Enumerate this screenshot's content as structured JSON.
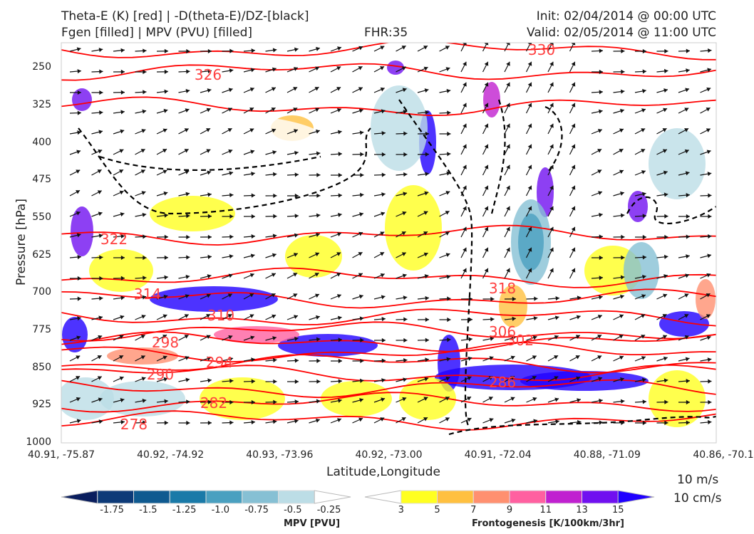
{
  "header": {
    "title_left_1": "Theta-E (K) [red] | -D(theta-E)/DZ-[black]",
    "title_left_2": "Fgen [filled] | MPV (PVU) [filled]",
    "fhr": "FHR:35",
    "init": "Init: 02/04/2014 @ 00:00 UTC",
    "valid": "Valid: 02/05/2014 @ 11:00 UTC"
  },
  "chart_data": {
    "type": "cross-section",
    "xlabel": "Latitude,Longitude",
    "ylabel": "Pressure [hPa]",
    "ylim": [
      1000,
      200
    ],
    "y_ticks": [
      "250",
      "325",
      "400",
      "475",
      "550",
      "625",
      "700",
      "775",
      "850",
      "925",
      "1000"
    ],
    "x_ticks": [
      "40.91, -75.87",
      "40.92, -74.92",
      "40.93, -73.96",
      "40.92, -73.00",
      "40.91, -72.04",
      "40.88, -71.09",
      "40.86, -70.1"
    ],
    "theta_e_labels": [
      "330",
      "326",
      "322",
      "318",
      "314",
      "310",
      "306",
      "302",
      "298",
      "294",
      "290",
      "286",
      "282",
      "278"
    ],
    "mpv_colorbar": {
      "label": "MPV [PVU]",
      "ticks": [
        "-1.75",
        "-1.5",
        "-1.25",
        "-1.0",
        "-0.75",
        "-0.5",
        "-0.25"
      ],
      "colors": [
        "#0a1e5e",
        "#0d3a78",
        "#0f5a90",
        "#1a7aa8",
        "#4aa0c0",
        "#86c0d4",
        "#bcdde6",
        "#ffffff"
      ]
    },
    "fgen_colorbar": {
      "label": "Frontogenesis [K/100km/3hr]",
      "ticks": [
        "3",
        "5",
        "7",
        "9",
        "11",
        "13",
        "15"
      ],
      "colors": [
        "#ffffff",
        "#ffff20",
        "#ffc040",
        "#ff9070",
        "#ff60a0",
        "#c020d0",
        "#7010f0",
        "#2000ff"
      ]
    },
    "wind_key": {
      "horizontal": "10 m/s",
      "vertical": "10 cm/s"
    }
  }
}
